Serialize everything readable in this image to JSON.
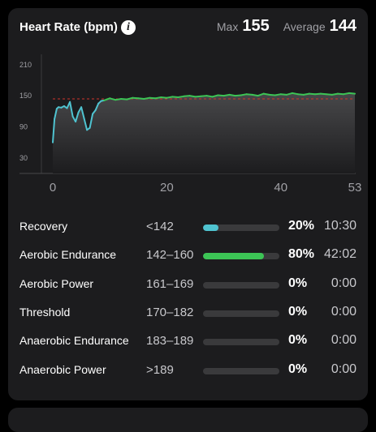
{
  "header": {
    "title": "Heart Rate (bpm)",
    "max_label": "Max",
    "max_value": "155",
    "average_label": "Average",
    "average_value": "144"
  },
  "chart_data": {
    "type": "area",
    "xlabel": "",
    "ylabel": "",
    "x_ticks": [
      "0",
      "20",
      "40",
      "53"
    ],
    "y_ticks": [
      "210",
      "150",
      "90",
      "30"
    ],
    "xlim": [
      0,
      53
    ],
    "ylim": [
      0,
      230
    ],
    "reference_line": 144,
    "colors": {
      "recovery": "#4fc3d0",
      "aerobic_endurance": "#3cc455",
      "reference": "#d0342c"
    },
    "series": [
      {
        "x": [
          0,
          0.3,
          0.7,
          1.0,
          1.5,
          2.0,
          2.5,
          3.0,
          3.5,
          4.0,
          4.5,
          5.0,
          5.5,
          6.0,
          6.5,
          7.0,
          7.5,
          8.0,
          8.5,
          9.0,
          9.5,
          10.0,
          11,
          12,
          13,
          14,
          15,
          16,
          17,
          18,
          19,
          20,
          21,
          22,
          23,
          24,
          25,
          26,
          27,
          28,
          29,
          30,
          31,
          32,
          33,
          34,
          35,
          36,
          37,
          38,
          39,
          40,
          41,
          42,
          43,
          44,
          45,
          46,
          47,
          48,
          49,
          50,
          51,
          52,
          53
        ],
        "y": [
          60,
          105,
          125,
          128,
          127,
          130,
          126,
          138,
          110,
          100,
          118,
          128,
          106,
          84,
          88,
          115,
          122,
          135,
          140,
          141,
          143,
          145,
          142,
          144,
          143,
          146,
          145,
          144,
          146,
          145,
          147,
          146,
          148,
          147,
          149,
          150,
          148,
          149,
          150,
          148,
          151,
          150,
          152,
          150,
          151,
          153,
          152,
          150,
          154,
          152,
          151,
          153,
          152,
          155,
          153,
          152,
          154,
          153,
          154,
          153,
          152,
          154,
          153,
          155,
          154
        ]
      }
    ]
  },
  "zones": [
    {
      "name": "Recovery",
      "range": "<142",
      "fraction": 0.2,
      "percent": "20%",
      "time": "10:30",
      "color": "#4fc3d0"
    },
    {
      "name": "Aerobic Endurance",
      "range": "142–160",
      "fraction": 0.8,
      "percent": "80%",
      "time": "42:02",
      "color": "#3cc455"
    },
    {
      "name": "Aerobic Power",
      "range": "161–169",
      "fraction": 0,
      "percent": "0%",
      "time": "0:00",
      "color": "#3cc455"
    },
    {
      "name": "Threshold",
      "range": "170–182",
      "fraction": 0,
      "percent": "0%",
      "time": "0:00",
      "color": "#3cc455"
    },
    {
      "name": "Anaerobic Endurance",
      "range": "183–189",
      "fraction": 0,
      "percent": "0%",
      "time": "0:00",
      "color": "#3cc455"
    },
    {
      "name": "Anaerobic Power",
      "range": ">189",
      "fraction": 0,
      "percent": "0%",
      "time": "0:00",
      "color": "#3cc455"
    }
  ]
}
